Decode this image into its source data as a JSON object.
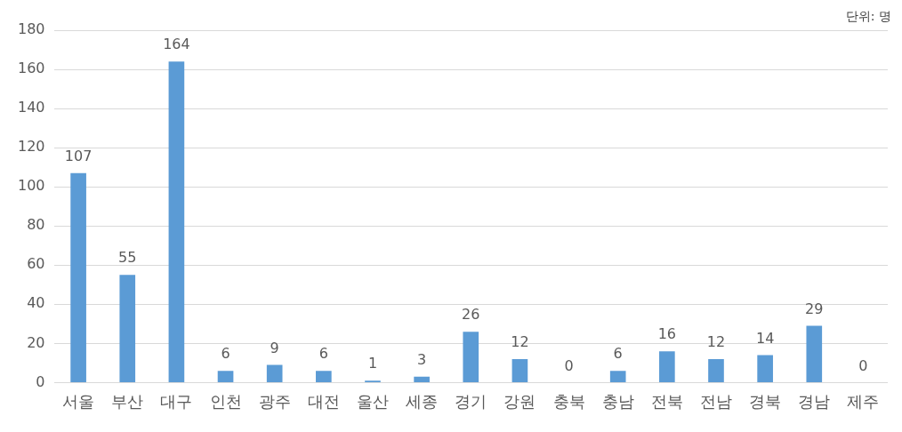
{
  "chart_data": {
    "type": "bar",
    "categories": [
      "서울",
      "부산",
      "대구",
      "인천",
      "광주",
      "대전",
      "울산",
      "세종",
      "경기",
      "강원",
      "충북",
      "충남",
      "전북",
      "전남",
      "경북",
      "경남",
      "제주"
    ],
    "values": [
      107,
      55,
      164,
      6,
      9,
      6,
      1,
      3,
      26,
      12,
      0,
      6,
      16,
      12,
      14,
      29,
      0
    ],
    "color": "#5b9bd5",
    "ylim": [
      0,
      180
    ],
    "yticks": [
      0,
      20,
      40,
      60,
      80,
      100,
      120,
      140,
      160,
      180
    ],
    "grid": "y",
    "legend": false,
    "data_labels": true,
    "annotations": [
      "단위: 명"
    ]
  }
}
